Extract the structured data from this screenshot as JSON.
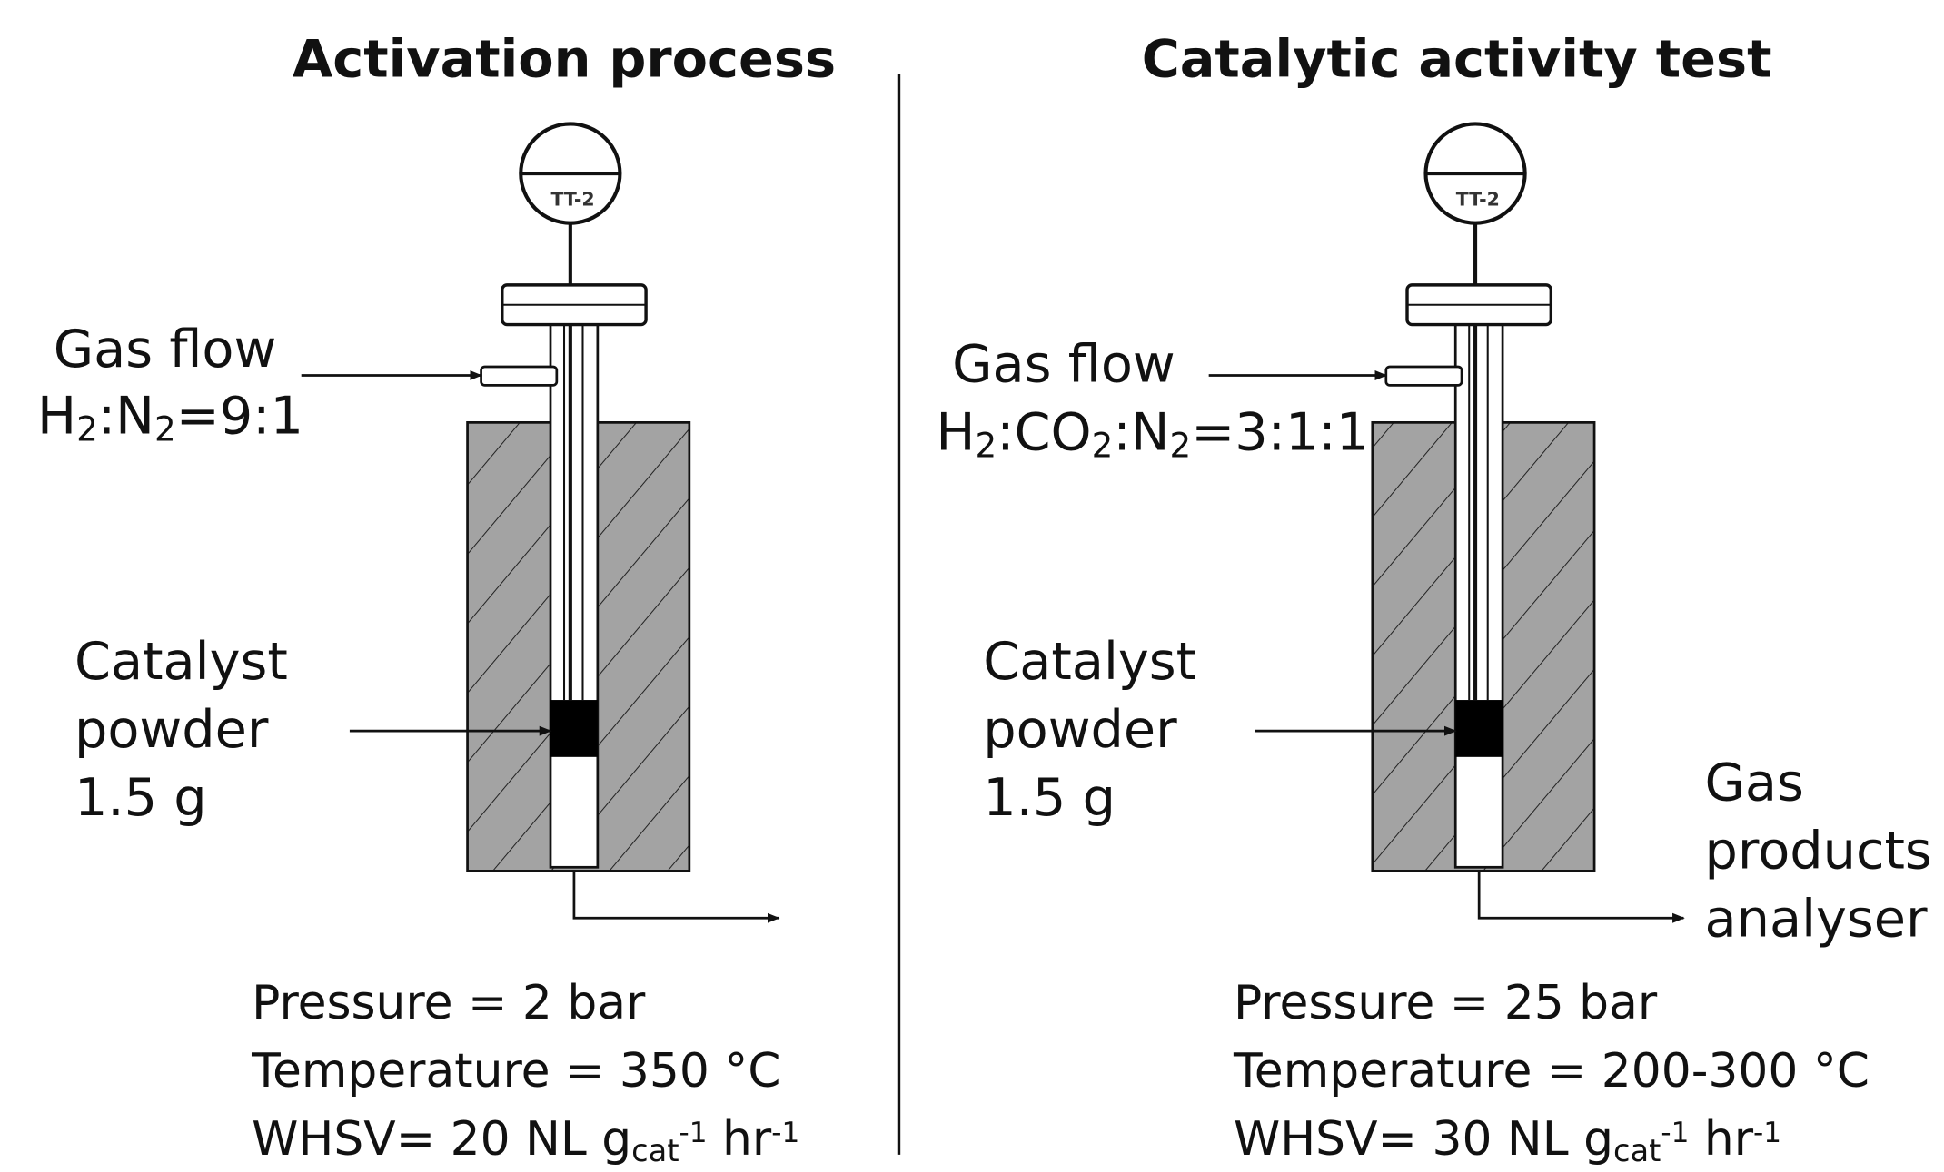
{
  "panels": [
    {
      "title": "Activation process",
      "gauge_label": "TT-2",
      "gas_flow_label": "Gas flow",
      "composition": [
        {
          "text": "H"
        },
        {
          "sub": "2"
        },
        {
          "text": ":N"
        },
        {
          "sub": "2"
        },
        {
          "text": "=9:1"
        }
      ],
      "catalyst_label": [
        "Catalyst",
        "powder",
        "1.5 g"
      ],
      "conditions": [
        [
          {
            "text": "Pressure = 2 bar"
          }
        ],
        [
          {
            "text": "Temperature = 350 °C"
          }
        ],
        [
          {
            "text": "WHSV= 20 NL g"
          },
          {
            "sub": "cat"
          },
          {
            "sup": "-1"
          },
          {
            "text": " hr"
          },
          {
            "sup": "-1"
          }
        ]
      ]
    },
    {
      "title": "Catalytic activity test",
      "gauge_label": "TT-2",
      "gas_flow_label": "Gas flow",
      "composition": [
        {
          "text": "H"
        },
        {
          "sub": "2"
        },
        {
          "text": ":CO"
        },
        {
          "sub": "2"
        },
        {
          "text": ":N"
        },
        {
          "sub": "2"
        },
        {
          "text": "=3:1:1"
        }
      ],
      "catalyst_label": [
        "Catalyst",
        "powder",
        "1.5 g"
      ],
      "outlet_label": [
        "Gas",
        "products",
        "analyser"
      ],
      "conditions": [
        [
          {
            "text": "Pressure = 25 bar"
          }
        ],
        [
          {
            "text": "Temperature = 200-300 °C"
          }
        ],
        [
          {
            "text": "WHSV= 30 NL g"
          },
          {
            "sub": "cat"
          },
          {
            "sup": "-1"
          },
          {
            "text": " hr"
          },
          {
            "sup": "-1"
          }
        ]
      ]
    }
  ]
}
